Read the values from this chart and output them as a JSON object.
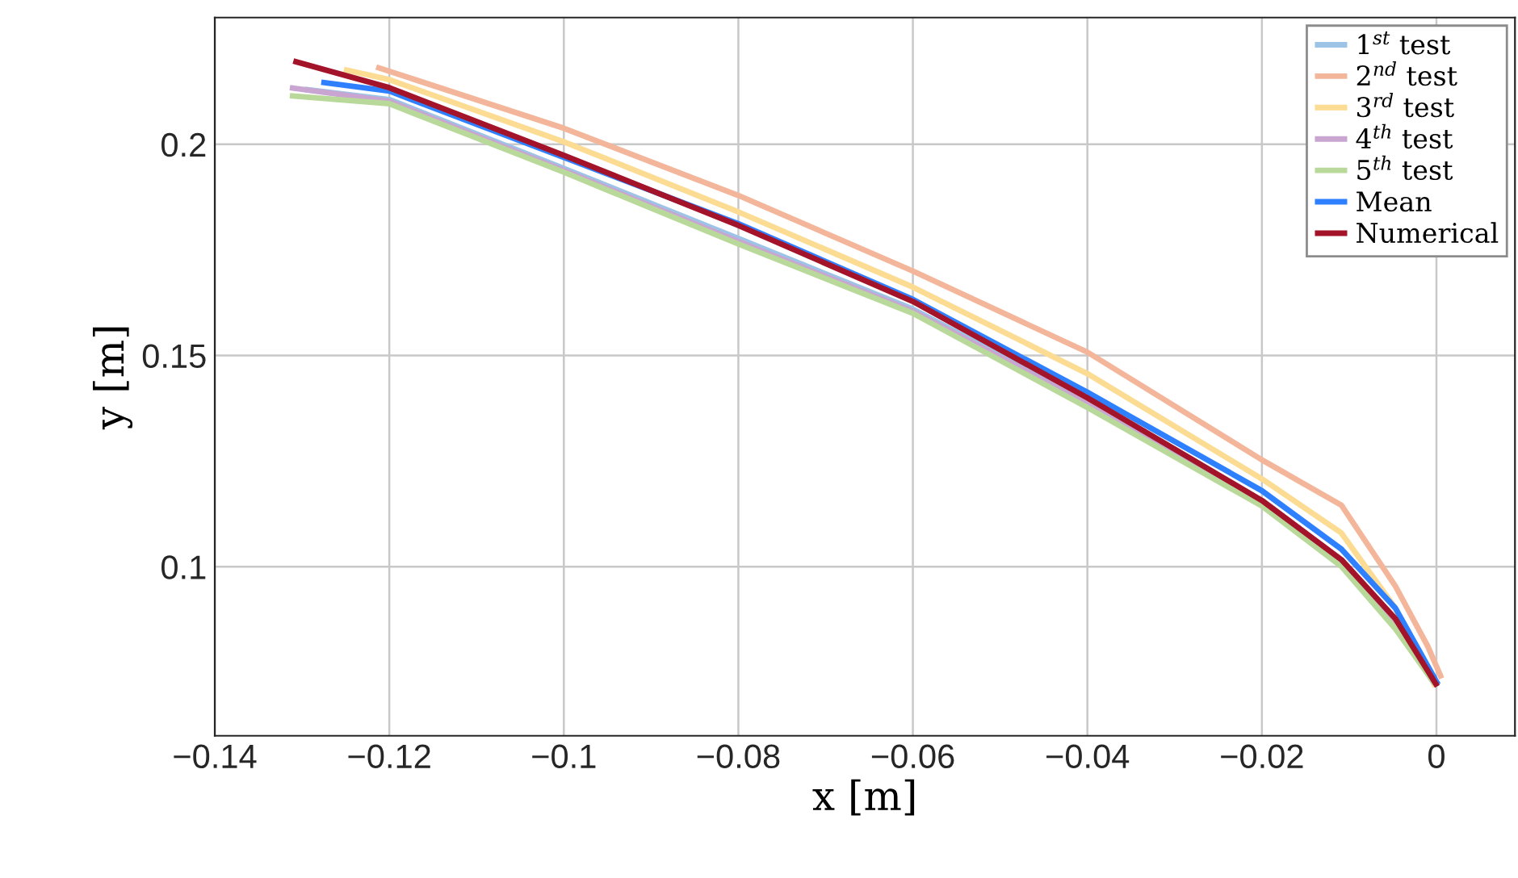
{
  "chart_data": {
    "type": "line",
    "xlabel": "x [m]",
    "ylabel": "y [m]",
    "xlim": [
      -0.14,
      0.009
    ],
    "ylim": [
      0.06,
      0.23
    ],
    "xticks": [
      {
        "value": -0.14,
        "label": "−0.14"
      },
      {
        "value": -0.12,
        "label": "−0.12"
      },
      {
        "value": -0.1,
        "label": "−0.1"
      },
      {
        "value": -0.08,
        "label": "−0.08"
      },
      {
        "value": -0.06,
        "label": "−0.06"
      },
      {
        "value": -0.04,
        "label": "−0.04"
      },
      {
        "value": -0.02,
        "label": "−0.02"
      },
      0
    ],
    "yticks": [
      0.1,
      0.15,
      0.2
    ],
    "grid": true,
    "legend": "top right",
    "line_style": "solid",
    "marker": "none",
    "series": [
      {
        "name": "1$^{st}$ test",
        "color": "#9dc3e6",
        "x": [
          -0.1297,
          -0.12,
          -0.1,
          -0.08,
          -0.06,
          -0.04,
          -0.02,
          -0.0109,
          -0.0047,
          -0.0002
        ],
        "values": [
          0.213,
          0.2106,
          0.1943,
          0.1777,
          0.161,
          0.1393,
          0.1155,
          0.101,
          0.0863,
          0.0723
        ]
      },
      {
        "name": "2$^{nd}$ test",
        "color": "#f4b69a",
        "x": [
          -0.1215,
          -0.1,
          -0.08,
          -0.06,
          -0.04,
          -0.02,
          -0.0109,
          -0.0047,
          -0.001,
          0.0006
        ],
        "values": [
          0.2183,
          0.2038,
          0.1879,
          0.17,
          0.1508,
          0.1253,
          0.1146,
          0.0954,
          0.0812,
          0.0736
        ]
      },
      {
        "name": "3$^{rd}$ test",
        "color": "#fcdb92",
        "x": [
          -0.1252,
          -0.12,
          -0.1,
          -0.08,
          -0.06,
          -0.04,
          -0.02,
          -0.0109,
          -0.0047,
          -0.0001
        ],
        "values": [
          0.2177,
          0.2153,
          0.2006,
          0.184,
          0.1662,
          0.1457,
          0.1208,
          0.108,
          0.0902,
          0.0716
        ]
      },
      {
        "name": "4$^{th}$ test",
        "color": "#c9a6d1",
        "x": [
          -0.1314,
          -0.12,
          -0.1,
          -0.08,
          -0.06,
          -0.04,
          -0.02,
          -0.0109,
          -0.0047,
          -0.0002
        ],
        "values": [
          0.2134,
          0.2102,
          0.1938,
          0.177,
          0.1605,
          0.1387,
          0.115,
          0.1006,
          0.0858,
          0.0723
        ]
      },
      {
        "name": "5$^{th}$ test",
        "color": "#b9d99a",
        "x": [
          -0.1314,
          -0.12,
          -0.1,
          -0.08,
          -0.06,
          -0.04,
          -0.02,
          -0.0109,
          -0.0047,
          -0.0002
        ],
        "values": [
          0.2115,
          0.2096,
          0.1934,
          0.1764,
          0.16,
          0.1377,
          0.1144,
          0.1001,
          0.0853,
          0.0723
        ]
      },
      {
        "name": "Mean",
        "color": "#2f80ff",
        "x": [
          -0.1278,
          -0.12,
          -0.1,
          -0.08,
          -0.06,
          -0.04,
          -0.02,
          -0.0109,
          -0.0047,
          0.0002
        ],
        "values": [
          0.2147,
          0.2126,
          0.1969,
          0.1812,
          0.1633,
          0.1413,
          0.118,
          0.1042,
          0.0902,
          0.0721
        ]
      },
      {
        "name": "Numerical",
        "color": "#a3142a",
        "x": [
          -0.131,
          -0.12,
          -0.1,
          -0.08,
          -0.06,
          -0.04,
          -0.02,
          -0.0109,
          -0.0047,
          0.0001
        ],
        "values": [
          0.2197,
          0.2134,
          0.1974,
          0.1808,
          0.1628,
          0.14,
          0.1157,
          0.1017,
          0.0877,
          0.0717
        ]
      }
    ]
  }
}
